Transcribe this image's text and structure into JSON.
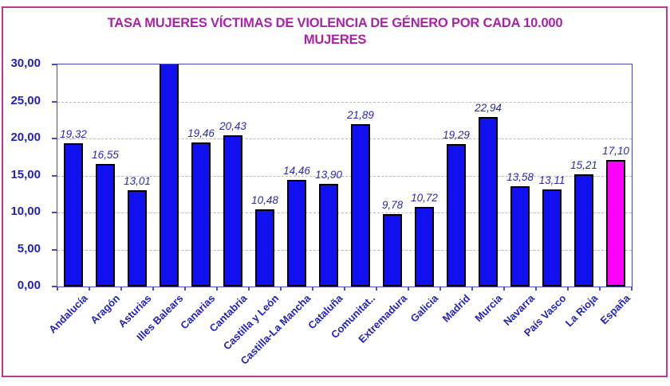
{
  "title": "TASA MUJERES VÍCTIMAS DE VIOLENCIA DE GÉNERO POR CADA 10.000 MUJERES",
  "colors": {
    "title": "#A823A8",
    "frame_border": "#C23694",
    "plot_border": "#4A4AC8",
    "gridline": "#BBBBBB",
    "axis_text": "#2222BB",
    "data_label": "#2A2AB5",
    "bar_fill": "#1010F0",
    "bar_outline": "#000000",
    "highlight_fill": "#FF00FF"
  },
  "y_axis": {
    "ticks": [
      "30,00",
      "25,00",
      "20,00",
      "15,00",
      "10,00",
      "5,00",
      "0,00"
    ],
    "min": 0,
    "max": 30,
    "step": 5
  },
  "chart_data": {
    "type": "bar",
    "title": "TASA MUJERES VÍCTIMAS DE VIOLENCIA DE GÉNERO POR CADA 10.000 MUJERES",
    "xlabel": "",
    "ylabel": "",
    "ylim": [
      0,
      30
    ],
    "grid": true,
    "legend": "none",
    "categories": [
      "Andalucía",
      "Aragón",
      "Asturias",
      "Illes Balears",
      "Canarias",
      "Cantabria",
      "Castilla y León",
      "Castilla-La Mancha",
      "Cataluña",
      "Comunitat..",
      "Extremadura",
      "Galicia",
      "Madrid",
      "Murcia",
      "Navarra",
      "País Vasco",
      "La Rioja",
      "España"
    ],
    "values": [
      19.32,
      16.55,
      13.01,
      30.0,
      19.46,
      20.43,
      10.48,
      14.46,
      13.9,
      21.89,
      9.78,
      10.72,
      19.29,
      22.94,
      13.58,
      13.11,
      15.21,
      17.1
    ],
    "labels": [
      "19,32",
      "16,55",
      "13,01",
      "",
      "19,46",
      "20,43",
      "10,48",
      "14,46",
      "13,90",
      "21,89",
      "9,78",
      "10,72",
      "19,29",
      "22,94",
      "13,58",
      "13,11",
      "15,21",
      "17,10"
    ],
    "highlight_index": 17,
    "clipped_indices": [
      3
    ]
  }
}
